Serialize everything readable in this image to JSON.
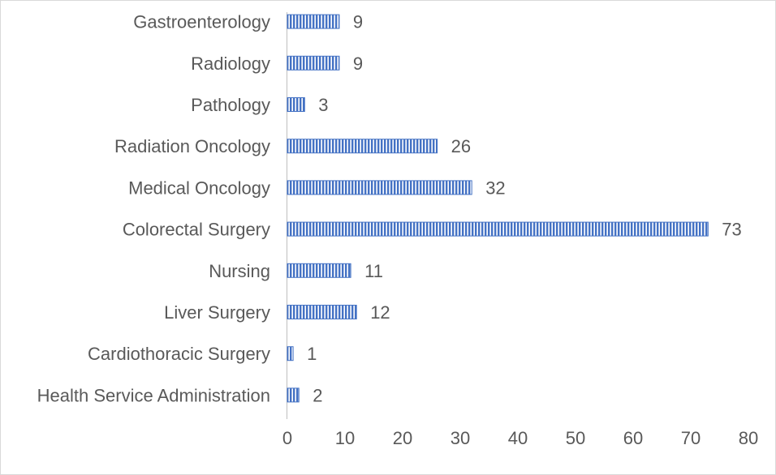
{
  "chart_data": {
    "type": "bar",
    "orientation": "horizontal",
    "categories": [
      "Gastroenterology",
      "Radiology",
      "Pathology",
      "Radiation Oncology",
      "Medical Oncology",
      "Colorectal Surgery",
      "Nursing",
      "Liver Surgery",
      "Cardiothoracic Surgery",
      "Health Service Administration"
    ],
    "values": [
      9,
      9,
      3,
      26,
      32,
      73,
      11,
      12,
      1,
      2
    ],
    "xlim": [
      0,
      80
    ],
    "xticks": [
      0,
      10,
      20,
      30,
      40,
      50,
      60,
      70,
      80
    ],
    "title": "",
    "xlabel": "",
    "ylabel": "",
    "grid": false,
    "legend": "none",
    "data_labels": true,
    "bar_color": "#4472c4",
    "bar_pattern": "vertical-stripes"
  }
}
